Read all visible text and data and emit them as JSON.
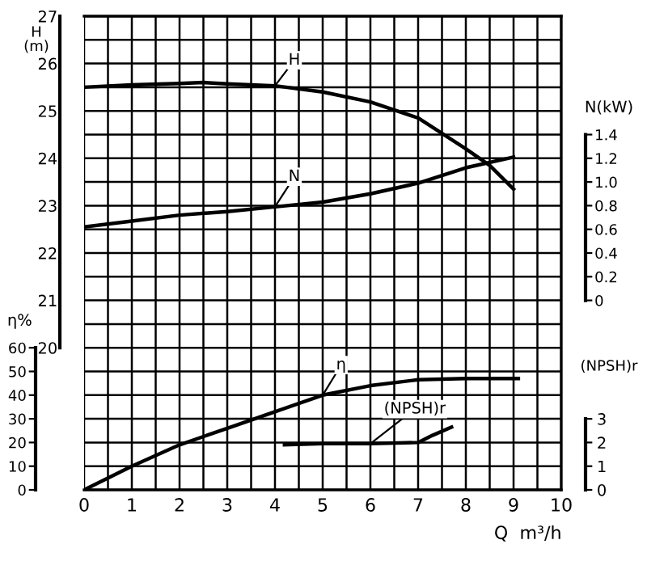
{
  "chart_data": [
    {
      "type": "line",
      "xlabel": "Q  m³/h",
      "ylabel": "H\n(m)",
      "y2label": "η%",
      "y3label": "N(kW)",
      "series": [
        {
          "name": "H",
          "color": "#000000",
          "x": [
            0,
            1,
            2,
            2.5,
            3,
            4,
            5,
            6,
            7,
            8,
            8.5,
            9
          ],
          "values": [
            25.5,
            25.55,
            25.58,
            25.6,
            25.57,
            25.53,
            25.4,
            25.19,
            24.85,
            24.2,
            23.85,
            23.35
          ]
        },
        {
          "name": "N",
          "axis": "y3",
          "color": "#000000",
          "x": [
            0,
            1,
            2,
            3,
            4,
            5,
            6,
            7,
            8,
            9
          ],
          "values": [
            0.62,
            0.67,
            0.72,
            0.75,
            0.79,
            0.83,
            0.9,
            0.99,
            1.12,
            1.21
          ]
        },
        {
          "name": "η",
          "axis": "y2",
          "color": "#000000",
          "x": [
            0,
            1,
            2,
            3,
            4,
            5,
            6,
            7,
            8,
            9,
            9.1
          ],
          "values": [
            0,
            10,
            19,
            26,
            33,
            40,
            44,
            46.5,
            47,
            47,
            47
          ]
        }
      ],
      "xlim": [
        0,
        10
      ],
      "xticks": [
        0,
        {
          "value": 0.5,
          "label": null
        },
        1,
        {
          "value": 1.5,
          "label": null
        },
        2,
        {
          "value": 2.5,
          "label": null
        },
        3,
        {
          "value": 3.5,
          "label": null
        },
        4,
        {
          "value": 4.5,
          "label": null
        },
        5,
        {
          "value": 5.5,
          "label": null
        },
        6,
        {
          "value": 6.5,
          "label": null
        },
        7,
        {
          "value": 7.5,
          "label": null
        },
        8,
        {
          "value": 8.5,
          "label": null
        },
        9,
        {
          "value": 9.5,
          "label": null
        },
        10
      ],
      "ylim": [
        17,
        27
      ],
      "yticks": [
        {
          "value": 17,
          "label": null
        },
        {
          "value": 17.5,
          "label": null
        },
        {
          "value": 18,
          "label": null
        },
        {
          "value": 18.5,
          "label": null
        },
        {
          "value": 19,
          "label": null
        },
        {
          "value": 19.5,
          "label": null
        },
        20,
        {
          "value": 20.5,
          "label": null
        },
        21,
        {
          "value": 21.5,
          "label": null
        },
        22,
        {
          "value": 22.5,
          "label": null
        },
        23,
        {
          "value": 23.5,
          "label": null
        },
        24,
        {
          "value": 24.5,
          "label": null
        },
        25,
        {
          "value": 25.5,
          "label": null
        },
        26,
        {
          "value": 26.5,
          "label": null
        },
        27
      ],
      "y2lim": [
        0,
        200
      ],
      "y2ticks": [
        0,
        10,
        20,
        30,
        40,
        50,
        60
      ],
      "y3lim": [
        -1.6,
        2.4
      ],
      "y3ticks": [
        0,
        {
          "value": 0.2,
          "label": "0.2"
        },
        {
          "value": 0.4,
          "label": "0.4"
        },
        {
          "value": 0.6,
          "label": "0.6"
        },
        {
          "value": 0.8,
          "label": "0.8"
        },
        {
          "value": 1.0,
          "label": "1.0"
        },
        {
          "value": 1.2,
          "label": "1.2"
        },
        {
          "value": 1.4,
          "label": "1.4"
        }
      ],
      "grid": true,
      "legend": false,
      "marker": "none",
      "line_style": "solid"
    },
    {
      "type": "line",
      "ylabel": "(NPSH)r",
      "series": [
        {
          "name": "(NPSH)r",
          "color": "#000000",
          "x": [
            4.2,
            5,
            6,
            7,
            7.3,
            7.7
          ],
          "values": [
            1.9,
            1.95,
            1.95,
            2.0,
            2.3,
            2.65
          ]
        }
      ],
      "xlim": [
        0,
        10
      ],
      "ylim": [
        0,
        20
      ],
      "yticks": [
        0,
        1,
        2,
        3
      ],
      "tick_labels": "y",
      "legend": false,
      "marker": "none",
      "line_style": "solid"
    }
  ]
}
